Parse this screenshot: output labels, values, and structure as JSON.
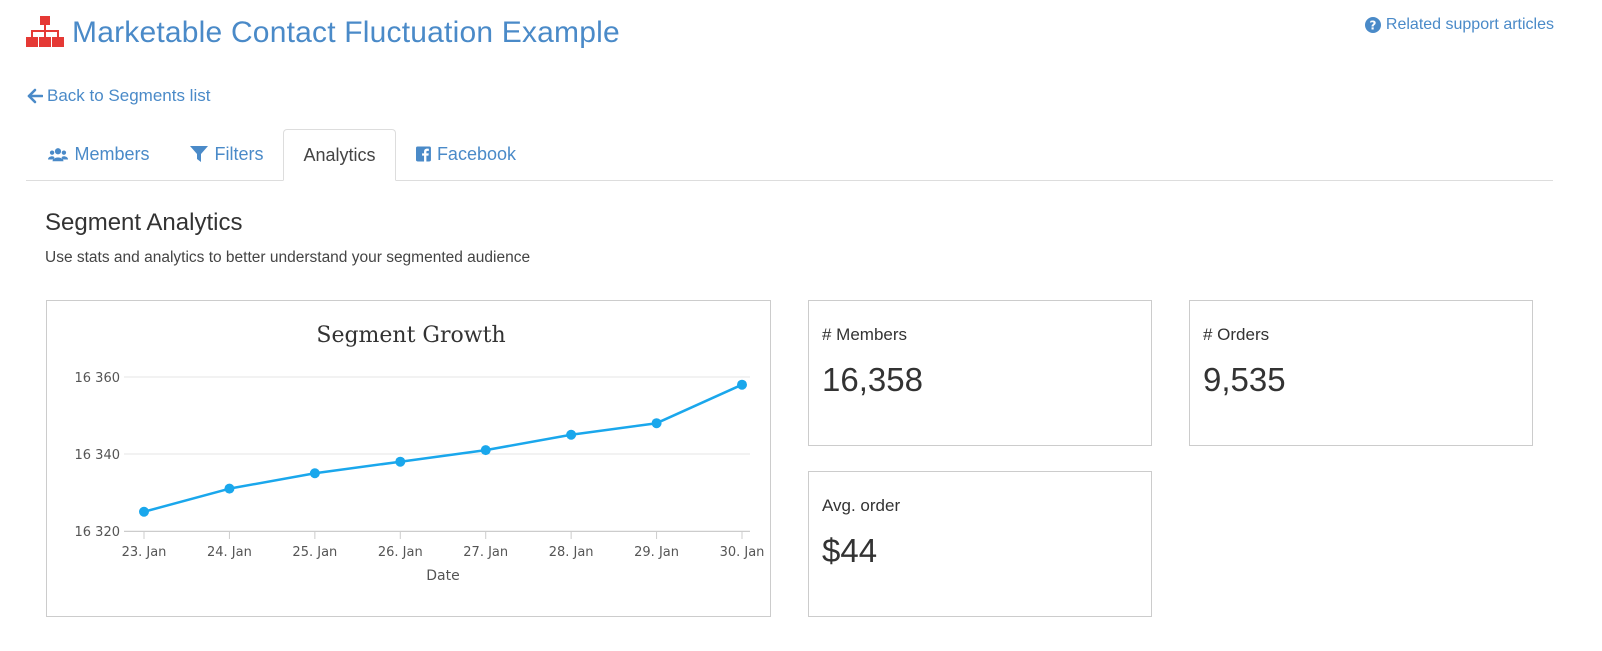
{
  "header": {
    "title": "Marketable Contact Fluctuation Example",
    "app_icon": "sitemap-icon",
    "support_link": "Related support articles",
    "support_icon": "question-circle-icon"
  },
  "back_link": {
    "label": "Back to Segments list",
    "icon": "arrow-left-icon"
  },
  "tabs": [
    {
      "label": "Members",
      "icon": "users-icon",
      "active": false
    },
    {
      "label": "Filters",
      "icon": "filter-icon",
      "active": false
    },
    {
      "label": "Analytics",
      "icon": "",
      "active": true
    },
    {
      "label": "Facebook",
      "icon": "facebook-icon",
      "active": false
    }
  ],
  "section": {
    "title": "Segment Analytics",
    "subtitle": "Use stats and analytics to better understand your segmented audience"
  },
  "stats": [
    {
      "label": "# Members",
      "value": "16,358"
    },
    {
      "label": "# Orders",
      "value": "9,535"
    },
    {
      "label": "Avg. order",
      "value": "$44"
    }
  ],
  "colors": {
    "accent": "#4a8ac8",
    "app_icon": "#e53935",
    "series": "#1aa7ec"
  },
  "chart_data": {
    "type": "line",
    "title": "Segment Growth",
    "xlabel": "Date",
    "ylabel": "",
    "categories": [
      "23. Jan",
      "24. Jan",
      "25. Jan",
      "26. Jan",
      "27. Jan",
      "28. Jan",
      "29. Jan",
      "30. Jan"
    ],
    "series": [
      {
        "values": [
          16325,
          16331,
          16335,
          16338,
          16341,
          16345,
          16348,
          16358
        ]
      }
    ],
    "ylim": [
      16320,
      16360
    ],
    "yticks": [
      {
        "value": 16320,
        "label": "16 320"
      },
      {
        "value": 16340,
        "label": "16 340"
      },
      {
        "value": 16360,
        "label": "16 360"
      }
    ],
    "grid": true,
    "legend": "none"
  }
}
